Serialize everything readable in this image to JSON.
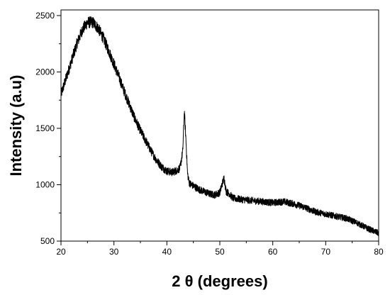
{
  "chart_data": {
    "type": "line",
    "title": "",
    "xlabel": "2 θ (degrees)",
    "ylabel": "Intensity (a.u)",
    "xlim": [
      20,
      80
    ],
    "ylim": [
      500,
      2550
    ],
    "x_ticks": [
      20,
      30,
      40,
      50,
      60,
      70,
      80
    ],
    "y_ticks": [
      500,
      1000,
      1500,
      2000,
      2500
    ],
    "grid": false,
    "legend": "none",
    "line_color": "#000000",
    "series": [
      {
        "noise_amplitude": 45,
        "x": [
          20,
          21,
          22,
          23,
          24,
          25,
          26,
          27,
          28,
          29,
          30,
          31,
          32,
          33,
          34,
          35,
          36,
          37,
          38,
          39,
          40,
          41,
          42,
          42.5,
          43,
          43.3,
          43.6,
          43.9,
          44.2,
          44.6,
          45,
          46,
          47,
          48,
          49,
          50,
          50.4,
          50.8,
          51.2,
          51.8,
          52.5,
          54,
          56,
          58,
          60,
          62,
          64,
          66,
          68,
          70,
          72,
          74,
          76,
          78,
          80
        ],
        "y": [
          1800,
          1950,
          2100,
          2250,
          2370,
          2440,
          2440,
          2390,
          2300,
          2190,
          2070,
          1950,
          1820,
          1700,
          1580,
          1480,
          1390,
          1300,
          1220,
          1160,
          1120,
          1110,
          1130,
          1150,
          1300,
          1650,
          1400,
          1100,
          1020,
          1000,
          990,
          960,
          940,
          920,
          910,
          930,
          1000,
          1060,
          940,
          920,
          880,
          870,
          860,
          850,
          840,
          850,
          830,
          800,
          760,
          740,
          720,
          700,
          660,
          610,
          570
        ]
      }
    ]
  }
}
